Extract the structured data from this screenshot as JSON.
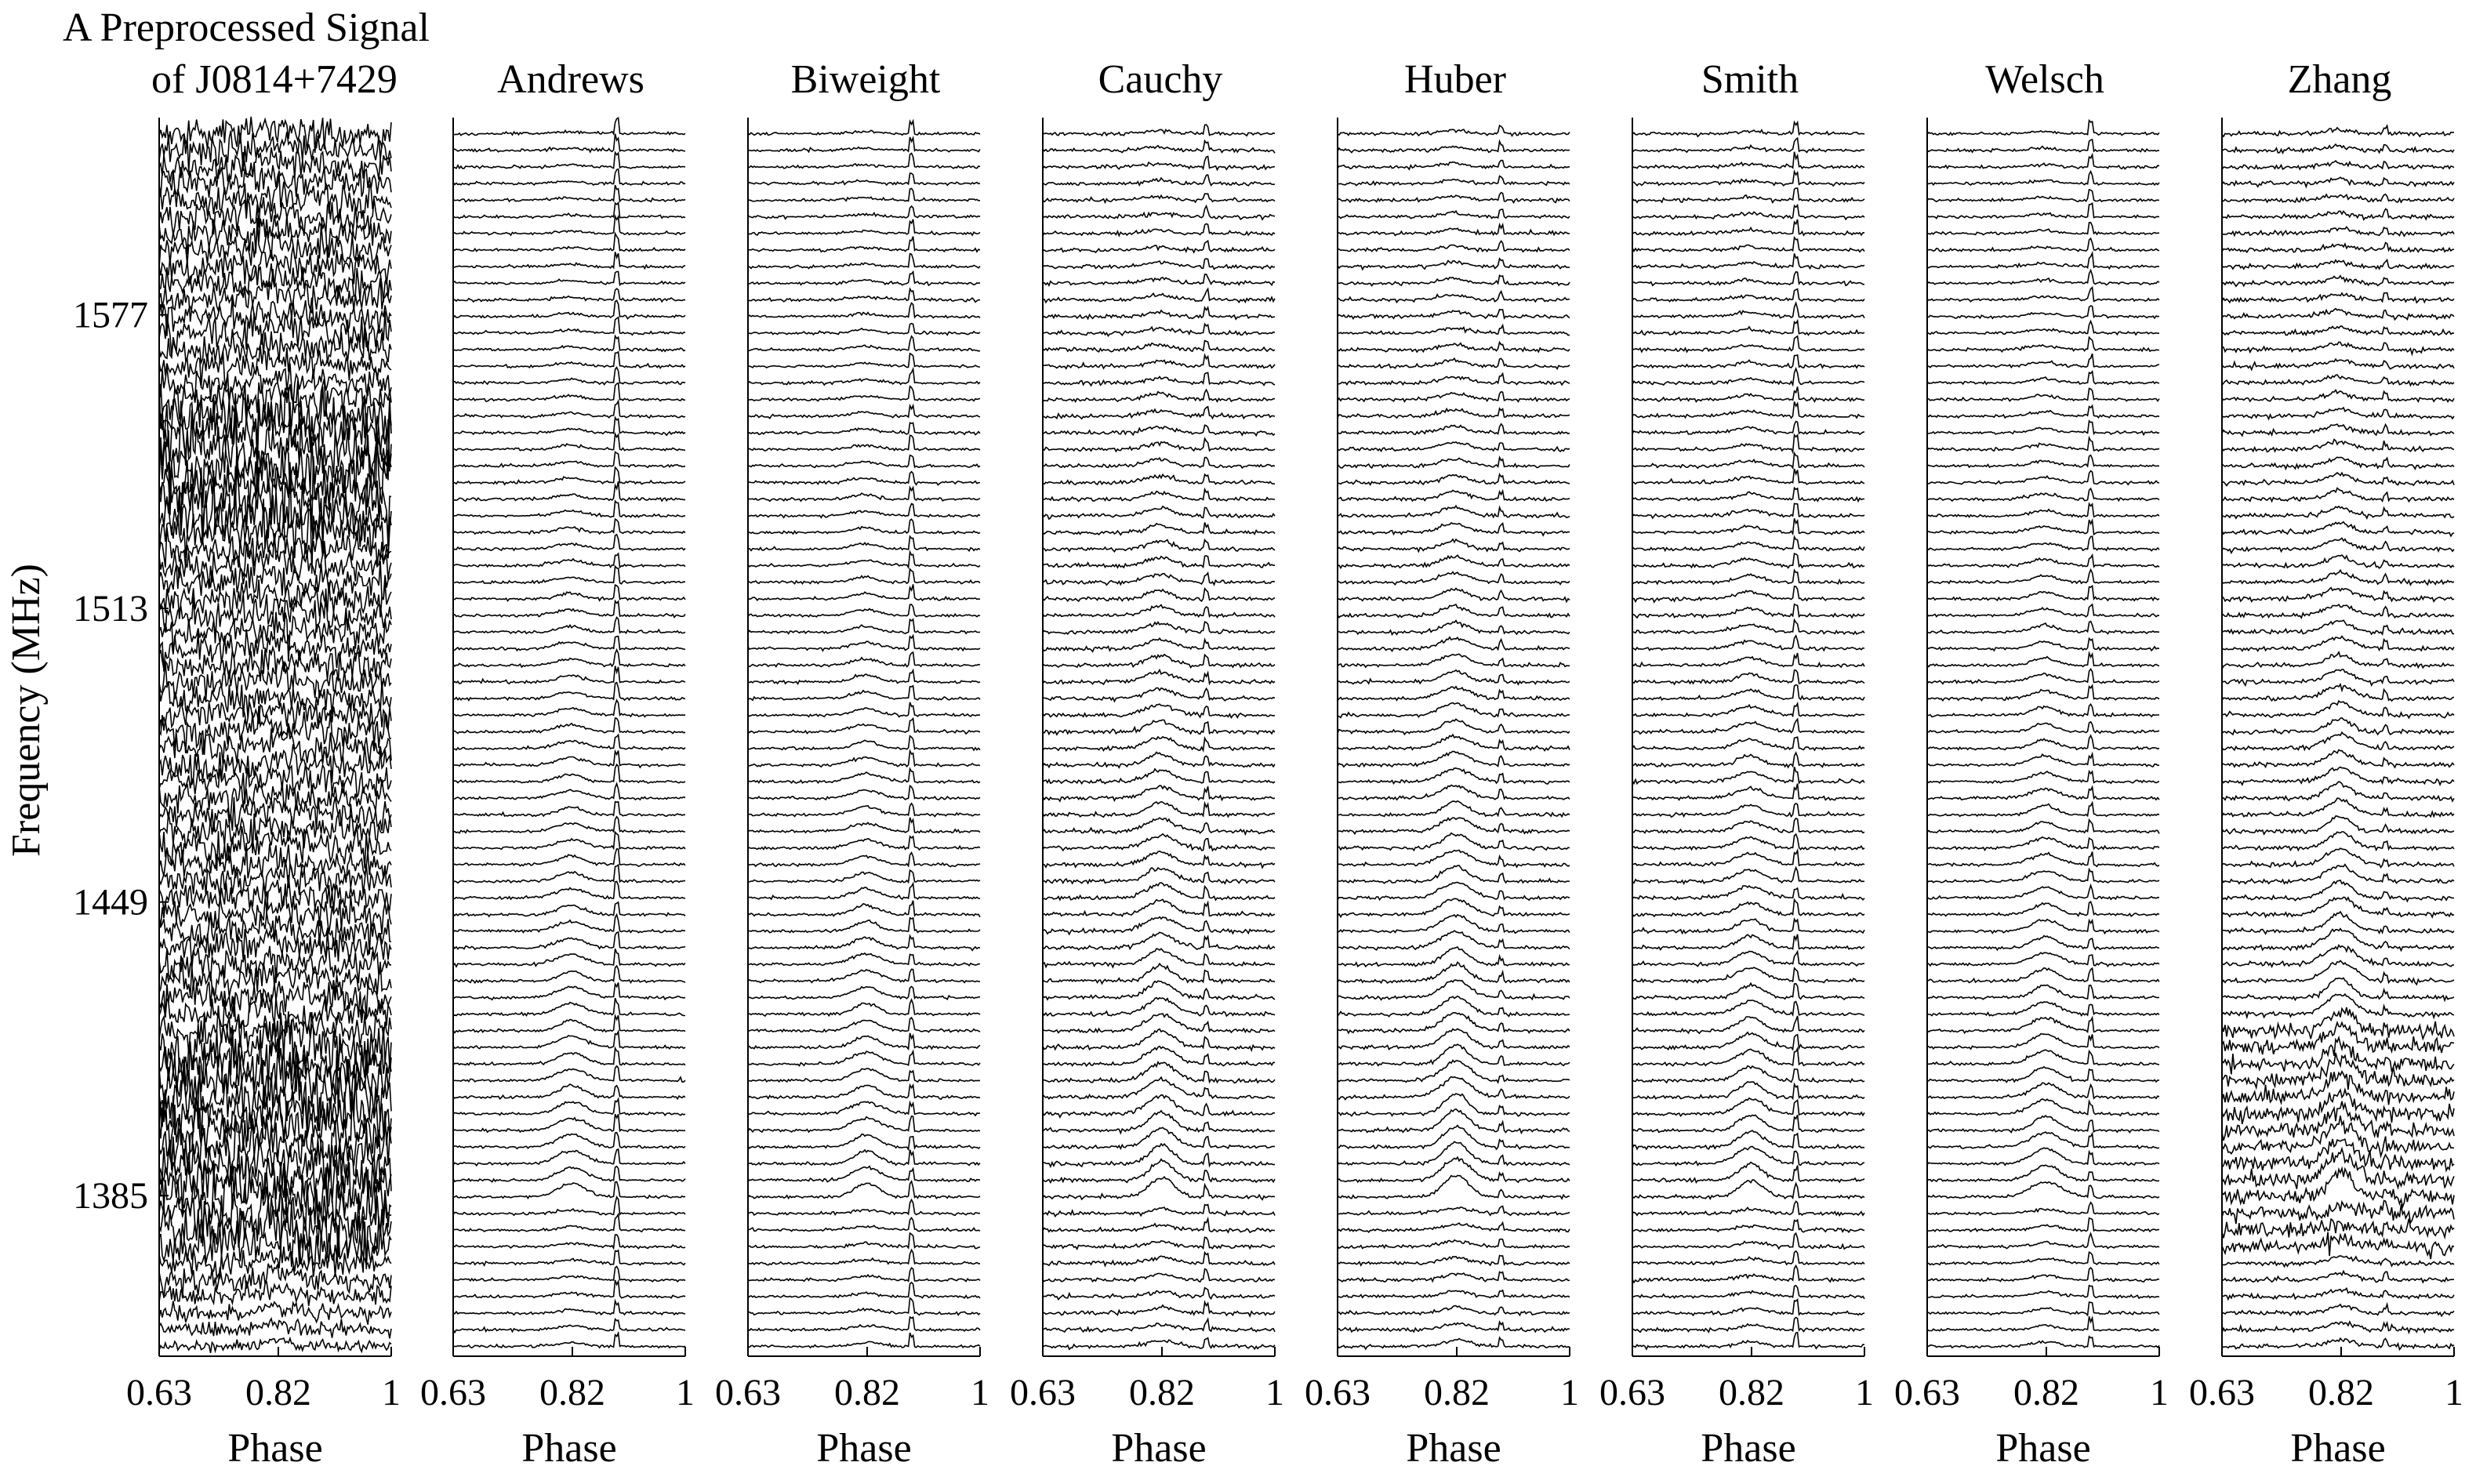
{
  "figure": {
    "ylabel": "Frequency (MHz)",
    "colors": {
      "trace": "#000000",
      "axes": "#000000",
      "background": "#ffffff"
    }
  },
  "chart_data": [
    {
      "type": "line",
      "title": "A Preprocessed Signal",
      "title_line2": "of J0814+7429",
      "xlabel": "Phase",
      "ylabel": "Frequency (MHz)",
      "xticks": [
        "0.63",
        "0.82",
        "1"
      ],
      "xlim": [
        0.63,
        1.0
      ],
      "yticks": [
        "1577",
        "1513",
        "1449",
        "1385"
      ],
      "ylim": [
        1350,
        1620
      ],
      "n_channels": 74,
      "noise": 0.55,
      "pulse_peak_phase": 0.82,
      "pulse_amplitude": 0.5,
      "rfi_band_mhz": [
        1549,
        1568
      ],
      "spike_phase": 0.89,
      "spike_amplitude": 0.25,
      "trace_style": "noisy"
    },
    {
      "type": "line",
      "title": "Andrews",
      "xlabel": "Phase",
      "xticks": [
        "0.63",
        "0.82",
        "1"
      ],
      "xlim": [
        0.63,
        1.0
      ],
      "n_channels": 74,
      "noise": 0.05,
      "pulse_peak_phase": 0.82,
      "pulse_amplitude": 0.6,
      "spike_phase": 0.89,
      "spike_amplitude": 0.7,
      "trace_style": "clean"
    },
    {
      "type": "line",
      "title": "Biweight",
      "xlabel": "Phase",
      "xticks": [
        "0.63",
        "0.82",
        "1"
      ],
      "xlim": [
        0.63,
        1.0
      ],
      "n_channels": 74,
      "noise": 0.05,
      "pulse_peak_phase": 0.82,
      "pulse_amplitude": 0.6,
      "spike_phase": 0.89,
      "spike_amplitude": 0.6,
      "trace_style": "clean"
    },
    {
      "type": "line",
      "title": "Cauchy",
      "xlabel": "Phase",
      "xticks": [
        "0.63",
        "0.82",
        "1"
      ],
      "xlim": [
        0.63,
        1.0
      ],
      "n_channels": 74,
      "noise": 0.07,
      "pulse_peak_phase": 0.82,
      "pulse_amplitude": 0.9,
      "spike_phase": 0.89,
      "spike_amplitude": 0.45,
      "trace_style": "clean"
    },
    {
      "type": "line",
      "title": "Huber",
      "xlabel": "Phase",
      "xticks": [
        "0.63",
        "0.82",
        "1"
      ],
      "xlim": [
        0.63,
        1.0
      ],
      "n_channels": 74,
      "noise": 0.06,
      "pulse_peak_phase": 0.82,
      "pulse_amplitude": 1.0,
      "spike_phase": 0.89,
      "spike_amplitude": 0.35,
      "trace_style": "clean"
    },
    {
      "type": "line",
      "title": "Smith",
      "xlabel": "Phase",
      "xticks": [
        "0.63",
        "0.82",
        "1"
      ],
      "xlim": [
        0.63,
        1.0
      ],
      "n_channels": 74,
      "noise": 0.06,
      "pulse_peak_phase": 0.82,
      "pulse_amplitude": 0.75,
      "spike_phase": 0.89,
      "spike_amplitude": 0.6,
      "trace_style": "clean"
    },
    {
      "type": "line",
      "title": "Welsch",
      "xlabel": "Phase",
      "xticks": [
        "0.63",
        "0.82",
        "1"
      ],
      "xlim": [
        0.63,
        1.0
      ],
      "n_channels": 74,
      "noise": 0.05,
      "pulse_peak_phase": 0.82,
      "pulse_amplitude": 0.7,
      "spike_phase": 0.89,
      "spike_amplitude": 0.55,
      "trace_style": "clean"
    },
    {
      "type": "line",
      "title": "Zhang",
      "xlabel": "Phase",
      "xticks": [
        "0.63",
        "0.82",
        "1"
      ],
      "xlim": [
        0.63,
        1.0
      ],
      "n_channels": 74,
      "noise": 0.08,
      "pulse_peak_phase": 0.82,
      "pulse_amplitude": 1.1,
      "spike_phase": 0.89,
      "spike_amplitude": 0.3,
      "trace_style": "zhang"
    }
  ]
}
